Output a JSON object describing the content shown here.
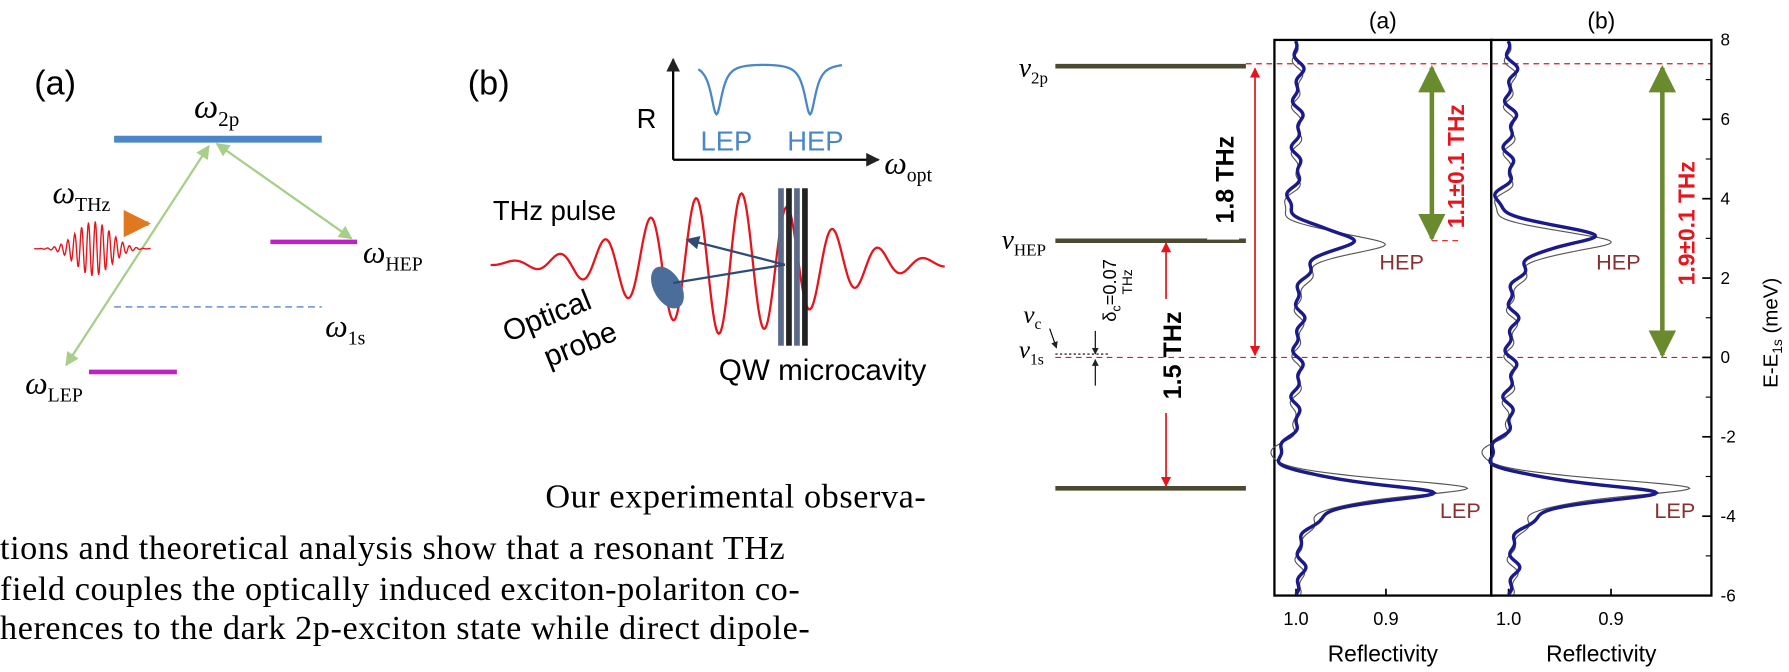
{
  "figure": {
    "panel_a": {
      "label": "(a)",
      "w2p": {
        "symbol": "ω",
        "sub": "2p"
      },
      "wthz": {
        "symbol": "ω",
        "sub": "THz"
      },
      "whep": {
        "symbol": "ω",
        "sub": "HEP"
      },
      "w1s": {
        "symbol": "ω",
        "sub": "1s"
      },
      "wlep": {
        "symbol": "ω",
        "sub": "LEP"
      }
    },
    "panel_b": {
      "label": "(b)",
      "r_axis": "R",
      "lep": "LEP",
      "hep": "HEP",
      "wopt": {
        "symbol": "ω",
        "sub": "opt"
      },
      "thz_pulse": "THz pulse",
      "optical_probe": [
        "Optical",
        "probe"
      ],
      "qw_microcavity": "QW microcavity"
    },
    "levels": {
      "v2p": {
        "symbol": "ν",
        "sub": "2p"
      },
      "vhep": {
        "symbol": "ν",
        "sub": "HEP"
      },
      "vc": {
        "symbol": "ν",
        "sub": "c"
      },
      "v1s": {
        "symbol": "ν",
        "sub": "1s"
      },
      "delta": {
        "symbol": "δ",
        "sub": "c",
        "rest": "=0.07",
        "unit": "THz"
      },
      "gap_2p": "1.8 THz",
      "gap_lep": "1.5 THz"
    },
    "spectra": {
      "panels": [
        {
          "label": "(a)",
          "xlim": [
            1.024,
            0.783
          ],
          "splitting": "1.1±0.1 THz",
          "hep": "HEP",
          "lep": "LEP",
          "x_label": "Reflectivity",
          "xticks": [
            {
              "value": 1.0,
              "label": "1.0"
            },
            {
              "value": 0.9,
              "label": "0.9"
            }
          ]
        },
        {
          "label": "(b)",
          "xlim": [
            1.017,
            0.802
          ],
          "splitting": "1.9±0.1 THz",
          "hep": "HEP",
          "lep": "LEP",
          "x_label": "Reflectivity",
          "xticks": [
            {
              "value": 1.0,
              "label": "1.0"
            },
            {
              "value": 0.9,
              "label": "0.9"
            }
          ]
        }
      ],
      "ylim": [
        -6,
        8
      ],
      "yticks": [
        8,
        6,
        4,
        2,
        0,
        -2,
        -4,
        -6
      ],
      "y_label": {
        "text": "E-E",
        "sub": "1s",
        "unit": " (meV)"
      }
    },
    "body_text": [
      "Our experimental observa-",
      "tions and theoretical analysis show that a resonant THz",
      "field couples the optically induced exciton-polariton co-",
      "herences to the dark 2p-exciton state while direct dipole-"
    ]
  }
}
